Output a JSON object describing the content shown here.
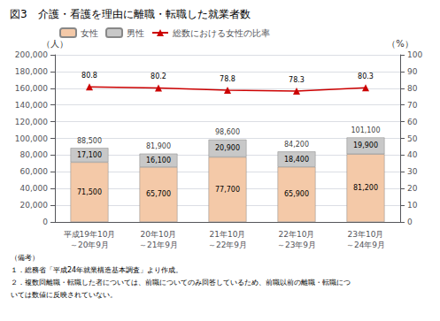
{
  "chart_data": {
    "type": "bar",
    "title": "図3　介護・看護を理由に離職・転職した就業者数",
    "categories": [
      "平成19年10月\n～20年9月",
      "20年10月\n～21年9月",
      "21年10月\n～22年9月",
      "22年10月\n～23年9月",
      "23年10月\n～24年9月"
    ],
    "series": [
      {
        "name": "女性",
        "type": "bar",
        "color": "#f4c9a8",
        "values": [
          71500,
          65700,
          77700,
          65900,
          81200
        ],
        "value_labels": [
          "71,500",
          "65,700",
          "77,700",
          "65,900",
          "81,200"
        ]
      },
      {
        "name": "男性",
        "type": "bar",
        "color": "#c8c8c8",
        "values": [
          17100,
          16100,
          20900,
          18400,
          19900
        ],
        "value_labels": [
          "17,100",
          "16,100",
          "20,900",
          "18,400",
          "19,900"
        ]
      },
      {
        "name": "総数における女性の比率",
        "type": "line",
        "axis": "y2",
        "color": "#cc0000",
        "marker": "triangle",
        "values": [
          80.8,
          80.2,
          78.8,
          78.3,
          80.3
        ]
      }
    ],
    "total_values": [
      88500,
      81900,
      98600,
      84200,
      101100
    ],
    "total_labels": [
      "88,500",
      "81,900",
      "98,600",
      "84,200",
      "101,100"
    ],
    "stacked": true,
    "data_labels": true,
    "ylabel": "（人）",
    "y2label": "（%）",
    "ylim": [
      0,
      200000
    ],
    "yticks": [
      {
        "value": 0,
        "label": "0"
      },
      {
        "value": 20000,
        "label": "20,000"
      },
      {
        "value": 40000,
        "label": "40,000"
      },
      {
        "value": 60000,
        "label": "60,000"
      },
      {
        "value": 80000,
        "label": "80,000"
      },
      {
        "value": 100000,
        "label": "100,000"
      },
      {
        "value": 120000,
        "label": "120,000"
      },
      {
        "value": 140000,
        "label": "140,000"
      },
      {
        "value": 160000,
        "label": "160,000"
      },
      {
        "value": 180000,
        "label": "180,000"
      },
      {
        "value": 200000,
        "label": "200,000"
      }
    ],
    "y2lim": [
      0,
      100
    ],
    "y2ticks": [
      0,
      10,
      20,
      30,
      40,
      50,
      60,
      70,
      80,
      90,
      100
    ],
    "grid": true,
    "legend": "upper left",
    "notes": [
      "（備考）",
      "１．総務省「平成24年就業構造基本調査」より作成。",
      "２．複数回離職・転職した者については、前職についてのみ回答しているため、前職以前の離職・転職につ",
      "いては数値に反映されていない。"
    ]
  }
}
